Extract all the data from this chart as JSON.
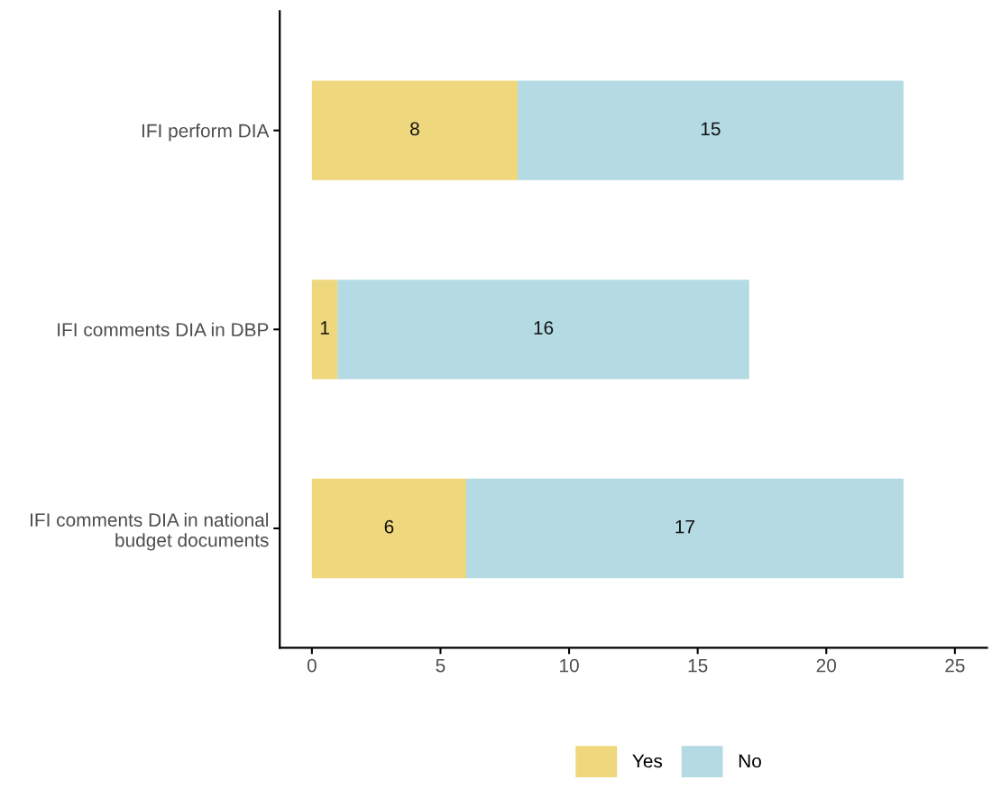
{
  "chart_data": {
    "type": "bar",
    "orientation": "horizontal",
    "stacked": true,
    "categories": [
      "IFI perform DIA",
      "IFI comments DIA in DBP",
      "IFI comments DIA in national\nbudget documents"
    ],
    "series": [
      {
        "name": "Yes",
        "color": "#eed77c",
        "values": [
          8,
          1,
          6
        ]
      },
      {
        "name": "No",
        "color": "#b4dae3",
        "values": [
          15,
          16,
          17
        ]
      }
    ],
    "xlim": [
      -1.25,
      26.25
    ],
    "xticks": [
      0,
      5,
      10,
      15,
      20,
      25
    ],
    "data_labels": true,
    "grid": false,
    "legend": "bottom"
  }
}
